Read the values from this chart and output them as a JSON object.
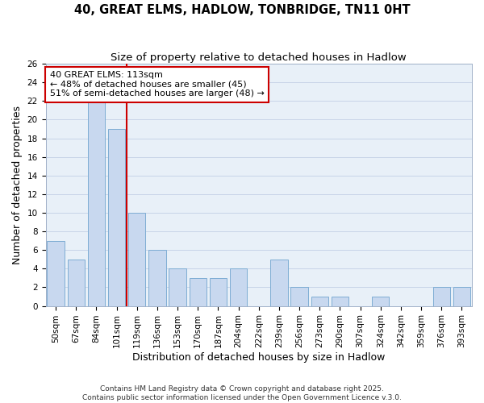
{
  "title1": "40, GREAT ELMS, HADLOW, TONBRIDGE, TN11 0HT",
  "title2": "Size of property relative to detached houses in Hadlow",
  "xlabel": "Distribution of detached houses by size in Hadlow",
  "ylabel": "Number of detached properties",
  "categories": [
    "50sqm",
    "67sqm",
    "84sqm",
    "101sqm",
    "119sqm",
    "136sqm",
    "153sqm",
    "170sqm",
    "187sqm",
    "204sqm",
    "222sqm",
    "239sqm",
    "256sqm",
    "273sqm",
    "290sqm",
    "307sqm",
    "324sqm",
    "342sqm",
    "359sqm",
    "376sqm",
    "393sqm"
  ],
  "values": [
    7,
    5,
    22,
    19,
    10,
    6,
    4,
    3,
    3,
    4,
    0,
    5,
    2,
    1,
    1,
    0,
    1,
    0,
    0,
    2,
    2
  ],
  "bar_color": "#c8d8ef",
  "bar_edge_color": "#7eadd4",
  "red_line_after_index": 3,
  "annotation_line1": "40 GREAT ELMS: 113sqm",
  "annotation_line2": "← 48% of detached houses are smaller (45)",
  "annotation_line3": "51% of semi-detached houses are larger (48) →",
  "annotation_box_color": "#ffffff",
  "annotation_box_edge": "#cc0000",
  "ylim": [
    0,
    26
  ],
  "yticks": [
    0,
    2,
    4,
    6,
    8,
    10,
    12,
    14,
    16,
    18,
    20,
    22,
    24,
    26
  ],
  "grid_color": "#c8d4e8",
  "background_color": "#e8f0f8",
  "footer_text": "Contains HM Land Registry data © Crown copyright and database right 2025.\nContains public sector information licensed under the Open Government Licence v.3.0.",
  "title_fontsize": 10.5,
  "subtitle_fontsize": 9.5,
  "axis_label_fontsize": 9,
  "tick_fontsize": 7.5,
  "annotation_fontsize": 8,
  "footer_fontsize": 6.5
}
